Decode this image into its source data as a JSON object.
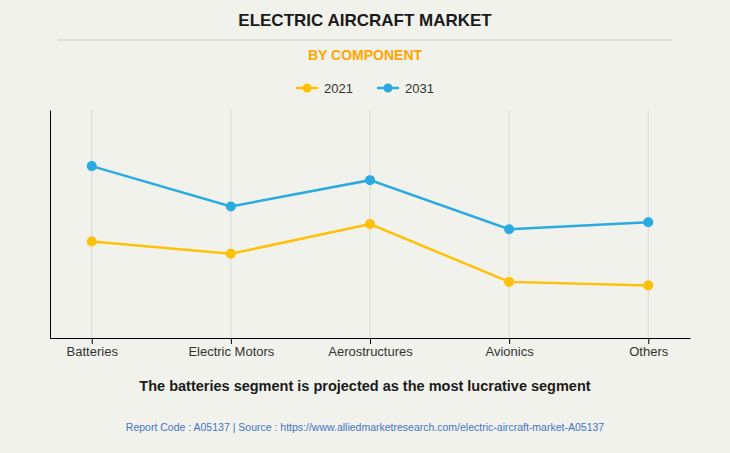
{
  "chart_data": {
    "type": "line",
    "title": "ELECTRIC AIRCRAFT MARKET",
    "subtitle": "BY COMPONENT",
    "annotations": [
      "The batteries segment is projected as the most lucrative segment",
      "Report Code : A05137  |  Source : https://www.alliedmarketresearch.com/electric-aircraft-market-A05137"
    ],
    "categories": [
      "Batteries",
      "Electric Motors",
      "Aerostructures",
      "Avionics",
      "Others"
    ],
    "series": [
      {
        "name": "2021",
        "color": "#FFC107",
        "values": [
          5.5,
          4.8,
          6.5,
          3.2,
          3.0
        ],
        "marker": "circle"
      },
      {
        "name": "2031",
        "color": "#29ABE2",
        "values": [
          9.8,
          7.5,
          9.0,
          6.2,
          6.6
        ],
        "marker": "circle"
      }
    ],
    "ylim": [
      0,
      13
    ],
    "yticks": [],
    "grid": true,
    "legend": "top",
    "tick_labels": "x"
  }
}
